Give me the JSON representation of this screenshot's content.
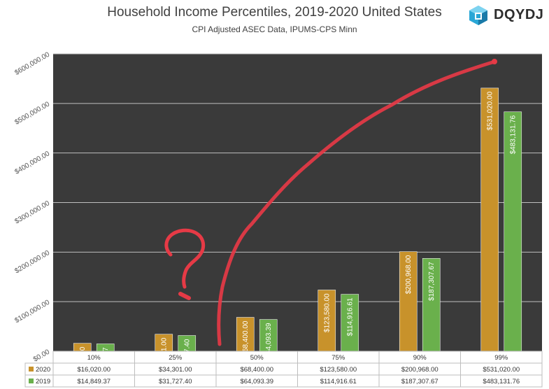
{
  "chart_data": {
    "type": "bar",
    "title": "Household Income Percentiles, 2019-2020 United States",
    "subtitle": "CPI Adjusted ASEC Data, IPUMS-CPS Minn",
    "categories": [
      "10%",
      "25%",
      "50%",
      "75%",
      "90%",
      "99%"
    ],
    "series": [
      {
        "name": "2020",
        "color": "#c8922b",
        "values": [
          16020.0,
          34301.0,
          68400.0,
          123580.0,
          200968.0,
          531020.0
        ],
        "labels": [
          "$16,020.00",
          "$34,301.00",
          "$68,400.00",
          "$123,580.00",
          "$200,968.00",
          "$531,020.00"
        ]
      },
      {
        "name": "2019",
        "color": "#6ab04c",
        "values": [
          14849.37,
          31727.4,
          64093.39,
          114916.61,
          187307.67,
          483131.76
        ],
        "labels": [
          "$14,849.37",
          "$31,727.40",
          "$64,093.39",
          "$114,916.61",
          "$187,307.67",
          "$483,131.76"
        ]
      }
    ],
    "yticks": [
      0,
      100000,
      200000,
      300000,
      400000,
      500000,
      600000
    ],
    "ytick_labels": [
      "$0.00",
      "$100,000.00",
      "$200,000.00",
      "$300,000.00",
      "$400,000.00",
      "$500,000.00",
      "$600,000.00"
    ],
    "ylim": [
      0,
      600000
    ],
    "grid": true,
    "legend": "data-table-below",
    "background_color": "#3a3a3a",
    "annotation": "red hand-drawn curve and question mark"
  },
  "logo": {
    "text": "DQYDJ",
    "icon": "dqydj-cube-logo"
  }
}
